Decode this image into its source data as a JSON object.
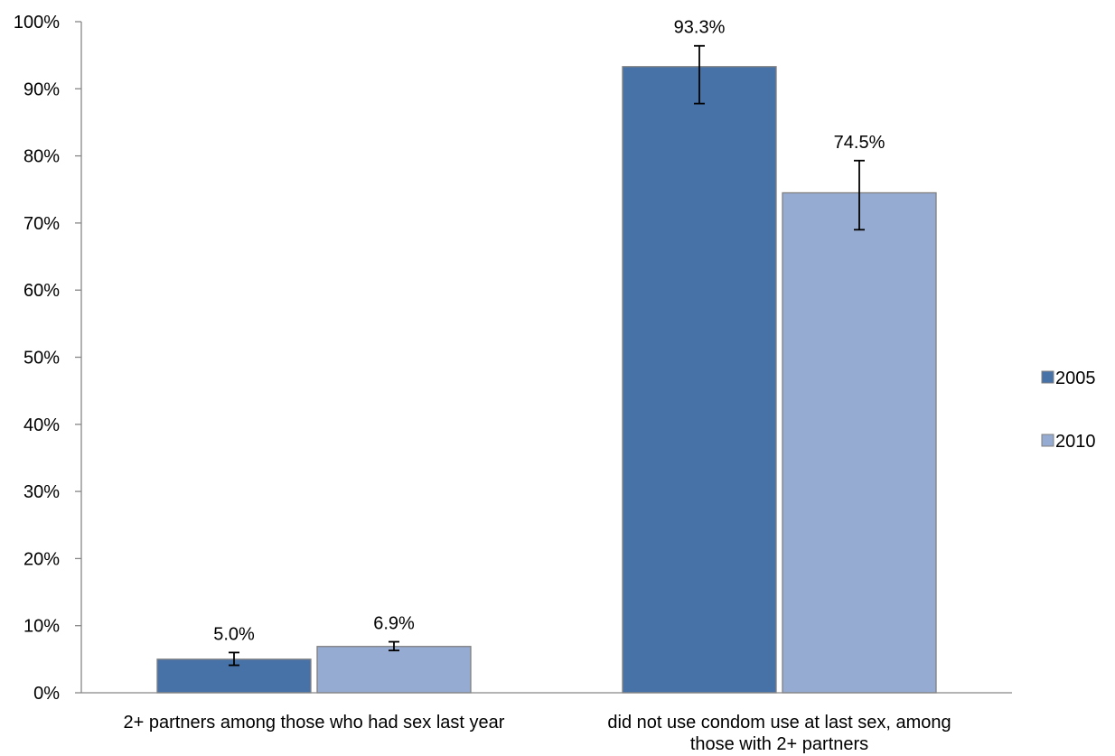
{
  "chart_data": {
    "type": "bar",
    "categories": [
      [
        "2+ partners among those who had sex last year"
      ],
      [
        "did not use condom use at last sex, among",
        "those with 2+ partners"
      ]
    ],
    "series": [
      {
        "name": "2005",
        "color": "#4672A8",
        "values": [
          5.0,
          93.3
        ],
        "labels": [
          "5.0%",
          "93.3%"
        ],
        "error_low": [
          4.1,
          87.8
        ],
        "error_high": [
          6.0,
          96.4
        ]
      },
      {
        "name": "2010",
        "color": "#96ABD1",
        "values": [
          6.9,
          74.5
        ],
        "labels": [
          "6.9%",
          "74.5%"
        ],
        "error_low": [
          6.3,
          69.0
        ],
        "error_high": [
          7.6,
          79.3
        ]
      }
    ],
    "ylim": [
      0,
      100
    ],
    "yticks": [
      0,
      10,
      20,
      30,
      40,
      50,
      60,
      70,
      80,
      90,
      100
    ],
    "ytick_labels": [
      "0%",
      "10%",
      "20%",
      "30%",
      "40%",
      "50%",
      "60%",
      "70%",
      "80%",
      "90%",
      "100%"
    ],
    "grid": false,
    "legend_position": "right",
    "title": "",
    "xlabel": "",
    "ylabel": ""
  }
}
